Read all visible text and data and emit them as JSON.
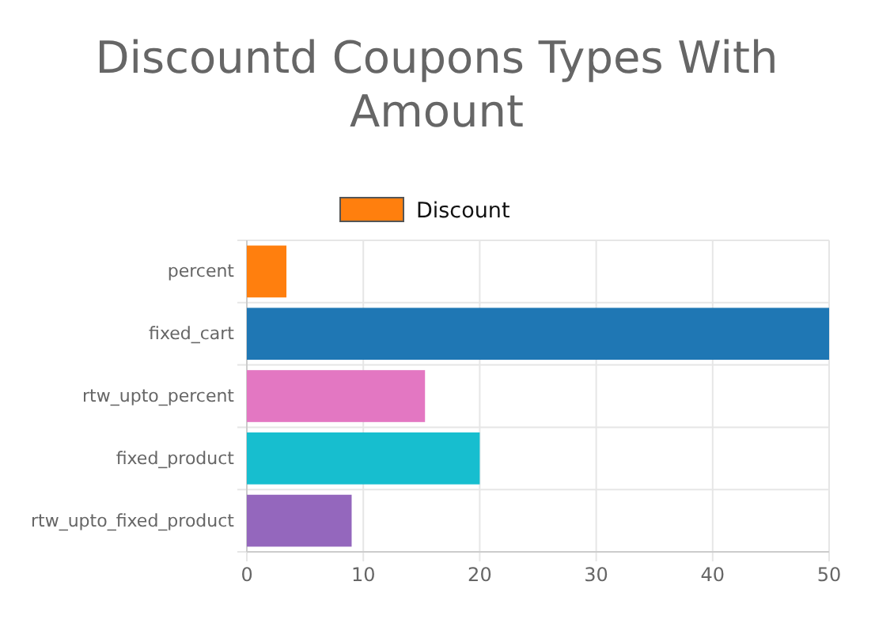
{
  "chart_data": {
    "type": "bar",
    "orientation": "horizontal",
    "title": "Discountd Coupons Types With Amount",
    "categories": [
      "percent",
      "fixed_cart",
      "rtw_upto_percent",
      "fixed_product",
      "rtw_upto_fixed_product"
    ],
    "series": [
      {
        "name": "Discount",
        "color": "#ff7f0e",
        "colors": [
          "#ff7f0e",
          "#1f77b4",
          "#e377c2",
          "#17becf",
          "#9467bd"
        ],
        "values": [
          3.4,
          50,
          15.3,
          20,
          9
        ]
      }
    ],
    "xlim": [
      0,
      50
    ],
    "xticks": [
      0,
      10,
      20,
      30,
      40,
      50
    ],
    "grid": true,
    "legend": "top"
  }
}
